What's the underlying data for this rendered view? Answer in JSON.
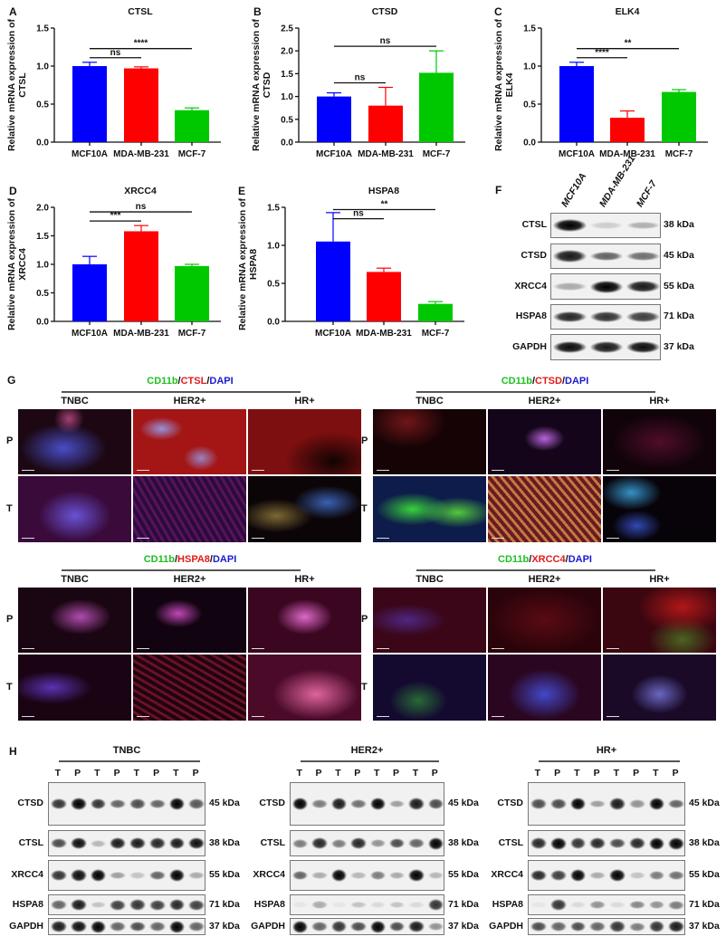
{
  "chart_data": [
    {
      "panel": "A",
      "type": "bar",
      "title": "CTSL",
      "ylabel_lines": [
        "Relative mRNA expression of",
        "CTSL"
      ],
      "categories": [
        "MCF10A",
        "MDA-MB-231",
        "MCF-7"
      ],
      "values": [
        1.0,
        0.97,
        0.42
      ],
      "errors": [
        0.05,
        0.02,
        0.03
      ],
      "colors": [
        "#0000ff",
        "#ff0000",
        "#00c800"
      ],
      "ylim": [
        0,
        1.5
      ],
      "yticks": [
        "0.0",
        "0.5",
        "1.0",
        "1.5"
      ],
      "comparisons": [
        {
          "groups": [
            0,
            1
          ],
          "label": "ns"
        },
        {
          "groups": [
            0,
            2
          ],
          "label": "****"
        }
      ]
    },
    {
      "panel": "B",
      "type": "bar",
      "title": "CTSD",
      "ylabel_lines": [
        "Relative mRNA expression of",
        "CTSD"
      ],
      "categories": [
        "MCF10A",
        "MDA-MB-231",
        "MCF-7"
      ],
      "values": [
        1.0,
        0.8,
        1.52
      ],
      "errors": [
        0.08,
        0.4,
        0.48
      ],
      "colors": [
        "#0000ff",
        "#ff0000",
        "#00c800"
      ],
      "ylim": [
        0,
        2.5
      ],
      "yticks": [
        "0.0",
        "0.5",
        "1.0",
        "1.5",
        "2.0",
        "2.5"
      ],
      "comparisons": [
        {
          "groups": [
            0,
            1
          ],
          "label": "ns"
        },
        {
          "groups": [
            0,
            2
          ],
          "label": "ns"
        }
      ]
    },
    {
      "panel": "C",
      "type": "bar",
      "title": "ELK4",
      "ylabel_lines": [
        "Relative mRNA expression of",
        "ELK4"
      ],
      "categories": [
        "MCF10A",
        "MDA-MB-231",
        "MCF-7"
      ],
      "values": [
        1.0,
        0.32,
        0.66
      ],
      "errors": [
        0.05,
        0.09,
        0.03
      ],
      "colors": [
        "#0000ff",
        "#ff0000",
        "#00c800"
      ],
      "ylim": [
        0,
        1.5
      ],
      "yticks": [
        "0.0",
        "0.5",
        "1.0",
        "1.5"
      ],
      "comparisons": [
        {
          "groups": [
            0,
            1
          ],
          "label": "****"
        },
        {
          "groups": [
            0,
            2
          ],
          "label": "**"
        }
      ]
    },
    {
      "panel": "D",
      "type": "bar",
      "title": "XRCC4",
      "ylabel_lines": [
        "Relative mRNA expression of",
        "XRCC4"
      ],
      "categories": [
        "MCF10A",
        "MDA-MB-231",
        "MCF-7"
      ],
      "values": [
        1.0,
        1.58,
        0.97
      ],
      "errors": [
        0.14,
        0.1,
        0.03
      ],
      "colors": [
        "#0000ff",
        "#ff0000",
        "#00c800"
      ],
      "ylim": [
        0,
        2.0
      ],
      "yticks": [
        "0.0",
        "0.5",
        "1.0",
        "1.5",
        "2.0"
      ],
      "comparisons": [
        {
          "groups": [
            0,
            1
          ],
          "label": "***"
        },
        {
          "groups": [
            0,
            2
          ],
          "label": "ns"
        }
      ]
    },
    {
      "panel": "E",
      "type": "bar",
      "title": "HSPA8",
      "ylabel_lines": [
        "Relative mRNA expression of",
        "HSPA8"
      ],
      "categories": [
        "MCF10A",
        "MDA-MB-231",
        "MCF-7"
      ],
      "values": [
        1.05,
        0.65,
        0.23
      ],
      "errors": [
        0.38,
        0.05,
        0.03
      ],
      "colors": [
        "#0000ff",
        "#ff0000",
        "#00c800"
      ],
      "ylim": [
        0,
        1.5
      ],
      "yticks": [
        "0.0",
        "0.5",
        "1.0",
        "1.5"
      ],
      "comparisons": [
        {
          "groups": [
            0,
            1
          ],
          "label": "ns"
        },
        {
          "groups": [
            0,
            2
          ],
          "label": "**"
        }
      ]
    }
  ],
  "panel_f": {
    "label": "F",
    "columns": [
      "MCF10A",
      "MDA-MB-231",
      "MCF-7"
    ],
    "rows": [
      {
        "protein": "CTSL",
        "kda": "38 kDa"
      },
      {
        "protein": "CTSD",
        "kda": "45 kDa"
      },
      {
        "protein": "XRCC4",
        "kda": "55 kDa"
      },
      {
        "protein": "HSPA8",
        "kda": "71 kDa"
      },
      {
        "protein": "GAPDH",
        "kda": "37 kDa"
      }
    ]
  },
  "panel_g": {
    "label": "G",
    "columns": [
      "TNBC",
      "HER2+",
      "HR+"
    ],
    "rows": [
      "P",
      "T"
    ],
    "blocks": [
      {
        "stain": [
          {
            "text": "CD11b",
            "color": "#1fbf1f"
          },
          {
            "text": "/",
            "color": "#111111"
          },
          {
            "text": "CTSL",
            "color": "#e01b1b"
          },
          {
            "text": "/",
            "color": "#111111"
          },
          {
            "text": "DAPI",
            "color": "#1b1bd0"
          }
        ]
      },
      {
        "stain": [
          {
            "text": "CD11b",
            "color": "#1fbf1f"
          },
          {
            "text": "/",
            "color": "#111111"
          },
          {
            "text": "CTSD",
            "color": "#e01b1b"
          },
          {
            "text": "/",
            "color": "#111111"
          },
          {
            "text": "DAPI",
            "color": "#1b1bd0"
          }
        ]
      },
      {
        "stain": [
          {
            "text": "CD11b",
            "color": "#1fbf1f"
          },
          {
            "text": "/",
            "color": "#111111"
          },
          {
            "text": "HSPA8",
            "color": "#e01b1b"
          },
          {
            "text": "/",
            "color": "#111111"
          },
          {
            "text": "DAPI",
            "color": "#1b1bd0"
          }
        ]
      },
      {
        "stain": [
          {
            "text": "CD11b",
            "color": "#1fbf1f"
          },
          {
            "text": "/",
            "color": "#111111"
          },
          {
            "text": "XRCC4",
            "color": "#e01b1b"
          },
          {
            "text": "/",
            "color": "#111111"
          },
          {
            "text": "DAPI",
            "color": "#1b1bd0"
          }
        ]
      }
    ]
  },
  "panel_h": {
    "label": "H",
    "groups": [
      {
        "name": "TNBC",
        "lanes": [
          "T",
          "P",
          "T",
          "P",
          "T",
          "P",
          "T",
          "P"
        ]
      },
      {
        "name": "HER2+",
        "lanes": [
          "T",
          "P",
          "T",
          "P",
          "T",
          "P",
          "T",
          "P"
        ]
      },
      {
        "name": "HR+",
        "lanes": [
          "T",
          "P",
          "T",
          "P",
          "T",
          "P",
          "T",
          "P"
        ]
      }
    ],
    "rows": [
      {
        "protein": "CTSD",
        "kda": "45 kDa"
      },
      {
        "protein": "CTSL",
        "kda": "38 kDa"
      },
      {
        "protein": "XRCC4",
        "kda": "55 kDa"
      },
      {
        "protein": "HSPA8",
        "kda": "71 kDa"
      },
      {
        "protein": "GAPDH",
        "kda": "37 kDa"
      }
    ]
  }
}
